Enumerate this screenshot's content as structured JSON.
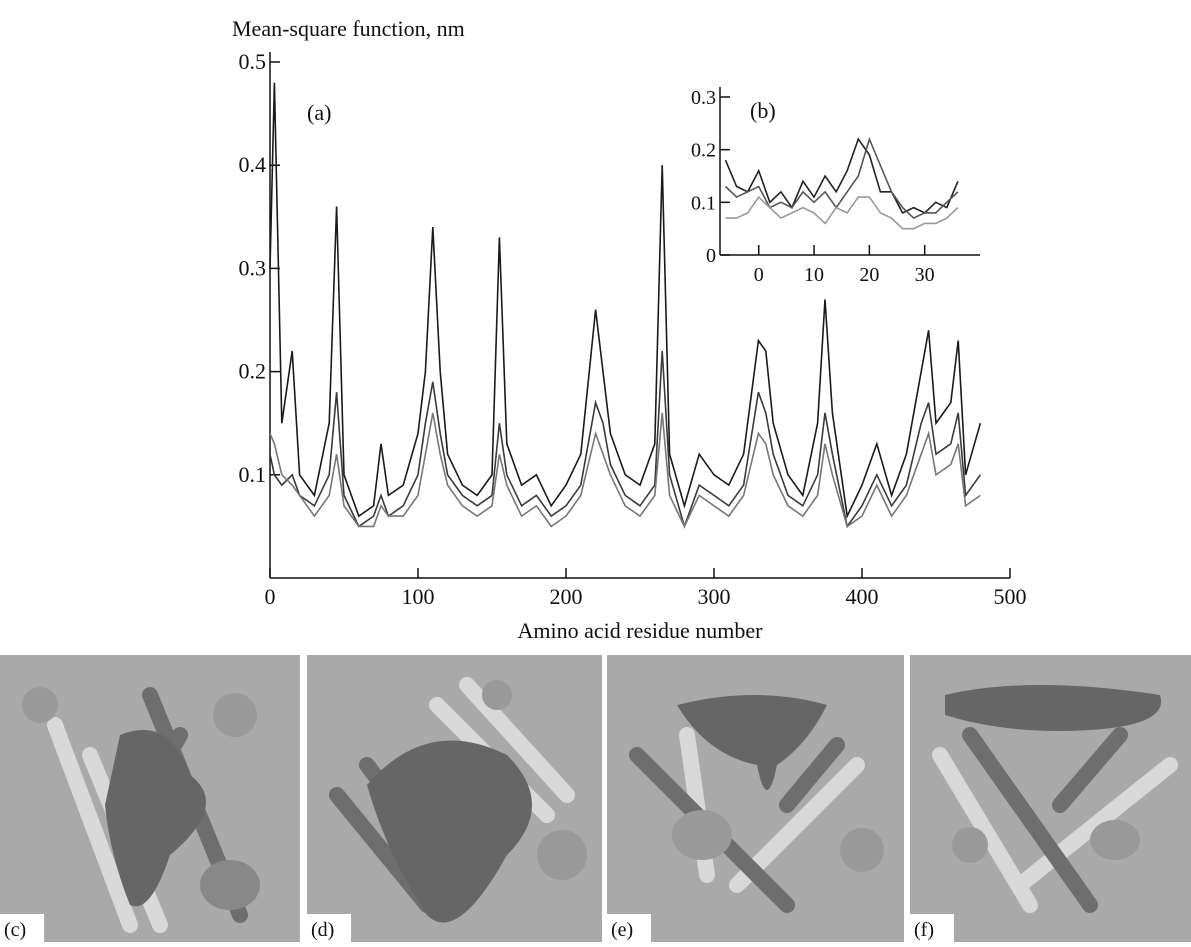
{
  "chart_data": [
    {
      "type": "line",
      "y_label": "Mean-square function, nm",
      "x_label": "Amino acid residue number",
      "annotation": "(a)",
      "x": [
        0,
        3,
        8,
        15,
        20,
        30,
        40,
        45,
        50,
        60,
        70,
        75,
        80,
        90,
        100,
        105,
        110,
        115,
        120,
        130,
        140,
        150,
        155,
        160,
        170,
        180,
        190,
        200,
        210,
        220,
        225,
        230,
        240,
        250,
        260,
        265,
        270,
        280,
        290,
        300,
        310,
        320,
        330,
        335,
        340,
        350,
        360,
        370,
        375,
        380,
        390,
        400,
        410,
        420,
        430,
        440,
        445,
        450,
        460,
        465,
        470,
        480
      ],
      "series": [
        {
          "color": "#1a1a1a",
          "values": [
            0.3,
            0.48,
            0.15,
            0.22,
            0.1,
            0.08,
            0.15,
            0.36,
            0.1,
            0.06,
            0.07,
            0.13,
            0.08,
            0.09,
            0.14,
            0.2,
            0.34,
            0.2,
            0.12,
            0.09,
            0.08,
            0.1,
            0.33,
            0.13,
            0.09,
            0.1,
            0.07,
            0.09,
            0.12,
            0.26,
            0.2,
            0.14,
            0.1,
            0.09,
            0.13,
            0.4,
            0.12,
            0.07,
            0.12,
            0.1,
            0.09,
            0.12,
            0.23,
            0.22,
            0.15,
            0.1,
            0.08,
            0.15,
            0.27,
            0.16,
            0.06,
            0.09,
            0.13,
            0.08,
            0.12,
            0.2,
            0.24,
            0.15,
            0.17,
            0.23,
            0.1,
            0.15
          ]
        },
        {
          "color": "#3a3a3a",
          "values": [
            0.12,
            0.1,
            0.09,
            0.1,
            0.08,
            0.07,
            0.1,
            0.18,
            0.08,
            0.05,
            0.06,
            0.08,
            0.06,
            0.07,
            0.1,
            0.15,
            0.19,
            0.14,
            0.1,
            0.08,
            0.07,
            0.08,
            0.15,
            0.1,
            0.07,
            0.08,
            0.06,
            0.07,
            0.09,
            0.17,
            0.15,
            0.11,
            0.08,
            0.07,
            0.09,
            0.22,
            0.1,
            0.05,
            0.09,
            0.08,
            0.07,
            0.09,
            0.18,
            0.16,
            0.12,
            0.08,
            0.07,
            0.1,
            0.16,
            0.12,
            0.05,
            0.07,
            0.1,
            0.07,
            0.09,
            0.15,
            0.17,
            0.12,
            0.13,
            0.16,
            0.08,
            0.1
          ]
        },
        {
          "color": "#777777",
          "values": [
            0.14,
            0.13,
            0.1,
            0.09,
            0.08,
            0.06,
            0.08,
            0.12,
            0.07,
            0.05,
            0.05,
            0.07,
            0.06,
            0.06,
            0.08,
            0.12,
            0.16,
            0.12,
            0.09,
            0.07,
            0.06,
            0.07,
            0.12,
            0.09,
            0.06,
            0.07,
            0.05,
            0.06,
            0.08,
            0.14,
            0.12,
            0.1,
            0.07,
            0.06,
            0.08,
            0.16,
            0.08,
            0.05,
            0.08,
            0.07,
            0.06,
            0.08,
            0.14,
            0.13,
            0.1,
            0.07,
            0.06,
            0.08,
            0.13,
            0.1,
            0.05,
            0.06,
            0.09,
            0.06,
            0.08,
            0.12,
            0.14,
            0.1,
            0.11,
            0.13,
            0.07,
            0.08
          ]
        }
      ],
      "xlim": [
        0,
        500
      ],
      "xticks": [
        0,
        100,
        200,
        300,
        400,
        500
      ],
      "ylim": [
        0,
        0.5
      ],
      "yticks": [
        0.1,
        0.2,
        0.3,
        0.4,
        0.5
      ]
    },
    {
      "type": "line",
      "annotation": "(b)",
      "x": [
        -6,
        -4,
        -2,
        0,
        2,
        4,
        6,
        8,
        10,
        12,
        14,
        16,
        18,
        20,
        22,
        24,
        26,
        28,
        30,
        32,
        34,
        36
      ],
      "series": [
        {
          "color": "#222222",
          "values": [
            0.18,
            0.13,
            0.12,
            0.16,
            0.1,
            0.12,
            0.09,
            0.14,
            0.11,
            0.15,
            0.12,
            0.16,
            0.22,
            0.19,
            0.12,
            0.12,
            0.08,
            0.09,
            0.08,
            0.1,
            0.09,
            0.14
          ]
        },
        {
          "color": "#555555",
          "values": [
            0.13,
            0.11,
            0.12,
            0.13,
            0.09,
            0.1,
            0.09,
            0.12,
            0.1,
            0.12,
            0.09,
            0.12,
            0.15,
            0.22,
            0.17,
            0.12,
            0.09,
            0.07,
            0.08,
            0.08,
            0.1,
            0.12
          ]
        },
        {
          "color": "#999999",
          "values": [
            0.07,
            0.07,
            0.08,
            0.11,
            0.09,
            0.07,
            0.08,
            0.09,
            0.08,
            0.06,
            0.09,
            0.08,
            0.11,
            0.11,
            0.08,
            0.07,
            0.05,
            0.05,
            0.06,
            0.06,
            0.07,
            0.09
          ]
        }
      ],
      "xlim": [
        -7,
        40
      ],
      "xticks": [
        0,
        10,
        20,
        30
      ],
      "ylim": [
        0,
        0.3
      ],
      "yticks": [
        0,
        0.1,
        0.2,
        0.3
      ]
    }
  ],
  "panels": {
    "labels": [
      "(c)",
      "(d)",
      "(e)",
      "(f)"
    ]
  }
}
